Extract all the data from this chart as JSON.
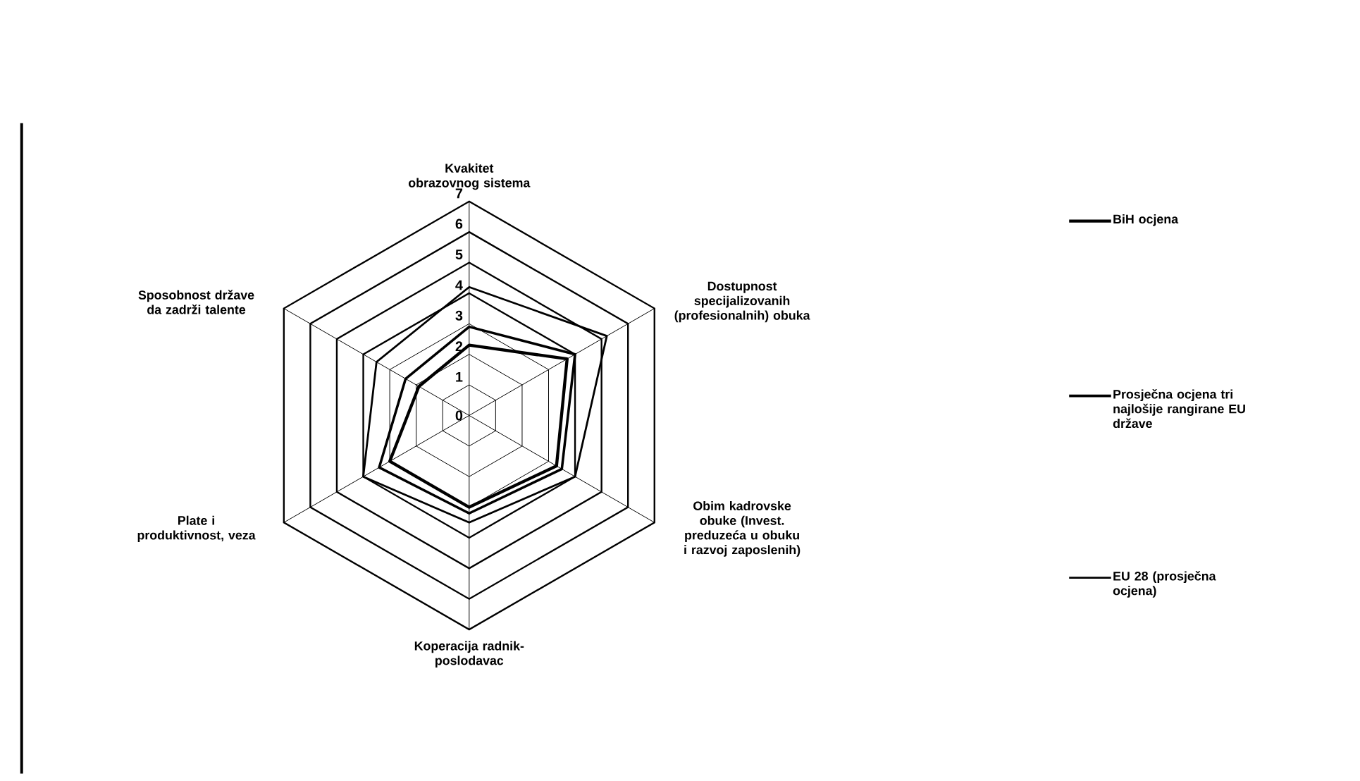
{
  "chart_data": {
    "type": "radar",
    "categories": [
      "Kvakitet obrazovnog sistema",
      "Dostupnost specijalizovanih (profesionalnih) obuka",
      "Obim kadrovske obuke (Invest. preduzeća u obuku i razvoj zaposlenih)",
      "Koperacija radnik-poslodavac",
      "Plate i produktivnost, veza",
      "Sposobnost države da zadrži talente"
    ],
    "ylim": [
      0,
      7
    ],
    "yticks": [
      0,
      1,
      2,
      3,
      4,
      5,
      6,
      7
    ],
    "legend": "right",
    "series": [
      {
        "name": "BiH ocjena",
        "color": "#000000",
        "values": [
          2.3,
          3.7,
          3.3,
          3.0,
          3.0,
          1.9
        ]
      },
      {
        "name": "Prosječna ocjena tri najlošije rangirane EU države",
        "color": "#000000",
        "values": [
          2.9,
          4.0,
          3.5,
          3.2,
          3.4,
          2.4
        ]
      },
      {
        "name": "EU 28 (prosječna ocjena)",
        "color": "#000000",
        "values": [
          4.2,
          5.2,
          4.0,
          3.5,
          4.0,
          3.5
        ]
      }
    ]
  }
}
